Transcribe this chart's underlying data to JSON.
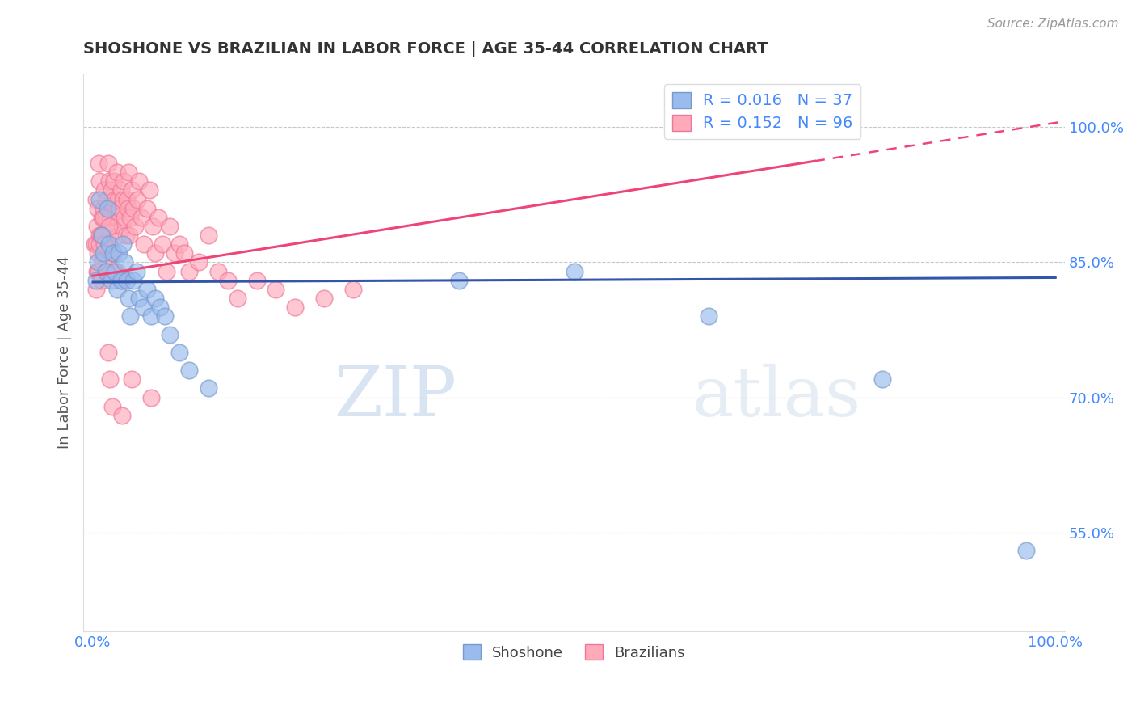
{
  "title": "SHOSHONE VS BRAZILIAN IN LABOR FORCE | AGE 35-44 CORRELATION CHART",
  "source_text": "Source: ZipAtlas.com",
  "ylabel": "In Labor Force | Age 35-44",
  "xlim": [
    -0.01,
    1.01
  ],
  "ylim": [
    0.44,
    1.06
  ],
  "xtick_positions": [
    0.0,
    0.25,
    0.5,
    0.75,
    1.0
  ],
  "xtick_labels": [
    "0.0%",
    "",
    "",
    "",
    "100.0%"
  ],
  "ytick_positions": [
    0.55,
    0.7,
    0.85,
    1.0
  ],
  "ytick_labels": [
    "55.0%",
    "70.0%",
    "85.0%",
    "100.0%"
  ],
  "grid_color": "#c8c8c8",
  "background_color": "#ffffff",
  "shoshone_color": "#99bbee",
  "shoshone_edge_color": "#7799cc",
  "brazilian_color": "#ffaabb",
  "brazilian_edge_color": "#ee7799",
  "shoshone_R": 0.016,
  "shoshone_N": 37,
  "brazilian_R": 0.152,
  "brazilian_N": 96,
  "shoshone_line_color": "#3355aa",
  "brazilian_line_color": "#ee4477",
  "legend_color": "#4488ff",
  "text_color": "#555555",
  "watermark_color": "#d8e8f0",
  "shoshone_line_y0": 0.828,
  "shoshone_line_y1": 0.833,
  "brazilian_line_y0": 0.835,
  "brazilian_line_y1": 1.005,
  "brazilian_line_solid_end": 0.75,
  "shoshone_x": [
    0.003,
    0.005,
    0.007,
    0.009,
    0.011,
    0.013,
    0.015,
    0.017,
    0.019,
    0.021,
    0.023,
    0.025,
    0.027,
    0.029,
    0.031,
    0.033,
    0.035,
    0.037,
    0.039,
    0.042,
    0.045,
    0.048,
    0.052,
    0.056,
    0.06,
    0.065,
    0.07,
    0.075,
    0.08,
    0.09,
    0.1,
    0.12,
    0.38,
    0.5,
    0.64,
    0.82,
    0.97
  ],
  "shoshone_y": [
    0.83,
    0.85,
    0.92,
    0.88,
    0.86,
    0.84,
    0.91,
    0.87,
    0.83,
    0.86,
    0.84,
    0.82,
    0.86,
    0.83,
    0.87,
    0.85,
    0.83,
    0.81,
    0.79,
    0.83,
    0.84,
    0.81,
    0.8,
    0.82,
    0.79,
    0.81,
    0.8,
    0.79,
    0.77,
    0.75,
    0.73,
    0.71,
    0.83,
    0.84,
    0.79,
    0.72,
    0.53
  ],
  "brazilian_x": [
    0.002,
    0.003,
    0.004,
    0.005,
    0.006,
    0.007,
    0.008,
    0.009,
    0.01,
    0.011,
    0.012,
    0.013,
    0.014,
    0.015,
    0.016,
    0.017,
    0.018,
    0.019,
    0.02,
    0.021,
    0.022,
    0.023,
    0.024,
    0.025,
    0.026,
    0.027,
    0.028,
    0.029,
    0.03,
    0.031,
    0.032,
    0.033,
    0.034,
    0.035,
    0.036,
    0.037,
    0.038,
    0.039,
    0.04,
    0.042,
    0.044,
    0.046,
    0.048,
    0.05,
    0.053,
    0.056,
    0.059,
    0.062,
    0.065,
    0.068,
    0.072,
    0.076,
    0.08,
    0.085,
    0.09,
    0.095,
    0.1,
    0.11,
    0.12,
    0.13,
    0.14,
    0.15,
    0.17,
    0.19,
    0.21,
    0.24,
    0.27,
    0.02,
    0.025,
    0.03,
    0.003,
    0.005,
    0.007,
    0.009,
    0.011,
    0.013,
    0.015,
    0.017,
    0.019,
    0.021,
    0.003,
    0.004,
    0.005,
    0.006,
    0.007,
    0.008,
    0.009,
    0.01,
    0.012,
    0.014,
    0.016,
    0.018,
    0.02,
    0.03,
    0.04,
    0.06
  ],
  "brazilian_y": [
    0.87,
    0.92,
    0.89,
    0.91,
    0.96,
    0.94,
    0.88,
    0.9,
    0.87,
    0.91,
    0.93,
    0.9,
    0.92,
    0.88,
    0.96,
    0.94,
    0.9,
    0.93,
    0.89,
    0.91,
    0.94,
    0.92,
    0.9,
    0.95,
    0.92,
    0.88,
    0.91,
    0.93,
    0.89,
    0.92,
    0.94,
    0.9,
    0.88,
    0.92,
    0.91,
    0.95,
    0.88,
    0.9,
    0.93,
    0.91,
    0.89,
    0.92,
    0.94,
    0.9,
    0.87,
    0.91,
    0.93,
    0.89,
    0.86,
    0.9,
    0.87,
    0.84,
    0.89,
    0.86,
    0.87,
    0.86,
    0.84,
    0.85,
    0.88,
    0.84,
    0.83,
    0.81,
    0.83,
    0.82,
    0.8,
    0.81,
    0.82,
    0.86,
    0.84,
    0.83,
    0.87,
    0.84,
    0.88,
    0.86,
    0.9,
    0.85,
    0.87,
    0.89,
    0.84,
    0.86,
    0.82,
    0.84,
    0.86,
    0.84,
    0.87,
    0.88,
    0.83,
    0.85,
    0.87,
    0.84,
    0.75,
    0.72,
    0.69,
    0.68,
    0.72,
    0.7
  ]
}
